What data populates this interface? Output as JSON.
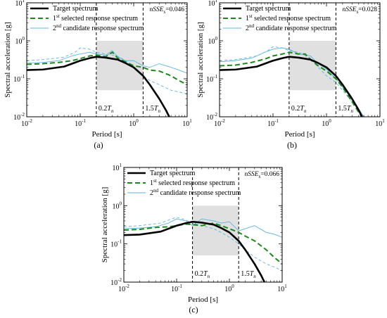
{
  "figure": {
    "panels": [
      {
        "label": "(a)",
        "metric_name": "nSSE",
        "metric_sub": "s",
        "metric_value": "=0.046"
      },
      {
        "label": "(b)",
        "metric_name": "nSSE",
        "metric_sub": "s",
        "metric_value": "=0.028"
      },
      {
        "label": "(c)",
        "metric_name": "nSSE",
        "metric_sub": "s",
        "metric_value": "=0.066"
      }
    ]
  },
  "chart_data": [
    {
      "type": "line",
      "xlabel": "Period [s]",
      "ylabel": "Spectral acceleration [g]",
      "x_scale": "log",
      "y_scale": "log",
      "xlim": [
        0.01,
        10
      ],
      "ylim": [
        0.01,
        10
      ],
      "x_ticks": [
        "10^-2",
        "10^-1",
        "10^0",
        "10^1"
      ],
      "y_ticks": [
        "10^-2",
        "10^-1",
        "10^0",
        "10^1"
      ],
      "legend_position": "top-left",
      "shaded_region": {
        "x": [
          0.2,
          1.5
        ],
        "y": [
          0.05,
          1.0
        ],
        "color": "#e0e0e0"
      },
      "vlines": [
        {
          "x": 0.2,
          "label": "0.2T",
          "subscript": "n"
        },
        {
          "x": 1.5,
          "label": "1.5T",
          "subscript": "n"
        }
      ],
      "series": [
        {
          "name": "Target spectrum",
          "style": "solid-thick",
          "color": "#000000",
          "x": [
            0.01,
            0.02,
            0.05,
            0.1,
            0.15,
            0.2,
            0.3,
            0.5,
            0.7,
            1,
            1.5,
            2,
            3,
            4,
            5
          ],
          "y": [
            0.17,
            0.175,
            0.21,
            0.3,
            0.35,
            0.38,
            0.36,
            0.32,
            0.26,
            0.2,
            0.12,
            0.07,
            0.03,
            0.015,
            0.008
          ]
        },
        {
          "name": "1st selected response spectrum",
          "name_parts": [
            "1",
            "st",
            " selected response spectrum"
          ],
          "style": "dashed-thick",
          "color": "#1a8a1a",
          "x": [
            0.01,
            0.02,
            0.04,
            0.07,
            0.1,
            0.15,
            0.2,
            0.3,
            0.4,
            0.5,
            0.7,
            1,
            1.5,
            2,
            3,
            5,
            7,
            10
          ],
          "y": [
            0.24,
            0.25,
            0.27,
            0.3,
            0.34,
            0.4,
            0.42,
            0.38,
            0.5,
            0.35,
            0.28,
            0.22,
            0.2,
            0.17,
            0.16,
            0.12,
            0.09,
            0.07
          ]
        },
        {
          "name": "2nd candidate response spectrum",
          "name_parts": [
            "2",
            "nd",
            " candidate response spectrum"
          ],
          "style": "thin",
          "color": "#5ab4e0",
          "x": [
            0.01,
            0.02,
            0.04,
            0.07,
            0.1,
            0.15,
            0.2,
            0.3,
            0.4,
            0.5,
            0.7,
            1,
            1.5,
            2,
            3,
            5,
            7,
            10
          ],
          "y": [
            0.26,
            0.27,
            0.3,
            0.4,
            0.45,
            0.5,
            0.45,
            0.42,
            0.55,
            0.38,
            0.3,
            0.3,
            0.22,
            0.2,
            0.25,
            0.2,
            0.17,
            0.14
          ]
        },
        {
          "name": "",
          "style": "dashed-thin",
          "color": "#5ab4e0",
          "x": [
            0.01,
            0.02,
            0.05,
            0.08,
            0.1,
            0.15,
            0.2,
            0.3,
            0.5,
            0.7,
            1,
            1.5,
            2,
            3,
            5,
            7,
            10
          ],
          "y": [
            0.3,
            0.32,
            0.37,
            0.5,
            0.65,
            0.6,
            0.5,
            0.45,
            0.4,
            0.3,
            0.2,
            0.12,
            0.09,
            0.07,
            0.05,
            0.045,
            0.04
          ]
        }
      ]
    },
    {
      "type": "line",
      "xlabel": "Period [s]",
      "ylabel": "Spectral acceleration [g]",
      "x_scale": "log",
      "y_scale": "log",
      "xlim": [
        0.01,
        10
      ],
      "ylim": [
        0.01,
        10
      ],
      "x_ticks": [
        "10^-2",
        "10^-1",
        "10^0",
        "10^1"
      ],
      "y_ticks": [
        "10^-2",
        "10^-1",
        "10^0",
        "10^1"
      ],
      "legend_position": "top-left",
      "shaded_region": {
        "x": [
          0.2,
          1.5
        ],
        "y": [
          0.05,
          1.0
        ],
        "color": "#e0e0e0"
      },
      "vlines": [
        {
          "x": 0.2,
          "label": "0.2T",
          "subscript": "n"
        },
        {
          "x": 1.5,
          "label": "1.5T",
          "subscript": "n"
        }
      ],
      "series": [
        {
          "name": "Target spectrum",
          "style": "solid-thick",
          "color": "#000000",
          "x": [
            0.01,
            0.02,
            0.05,
            0.1,
            0.15,
            0.2,
            0.3,
            0.5,
            0.7,
            1,
            1.5,
            2,
            3,
            4,
            5
          ],
          "y": [
            0.17,
            0.175,
            0.21,
            0.3,
            0.35,
            0.38,
            0.36,
            0.32,
            0.26,
            0.2,
            0.12,
            0.07,
            0.03,
            0.015,
            0.008
          ]
        },
        {
          "name": "1st selected response spectrum",
          "name_parts": [
            "1",
            "st",
            " selected response spectrum"
          ],
          "style": "dashed-thick",
          "color": "#1a8a1a",
          "x": [
            0.01,
            0.02,
            0.04,
            0.07,
            0.1,
            0.15,
            0.2,
            0.3,
            0.4,
            0.5,
            0.7,
            1,
            1.5,
            2,
            3,
            5
          ],
          "y": [
            0.22,
            0.23,
            0.27,
            0.33,
            0.4,
            0.45,
            0.5,
            0.45,
            0.45,
            0.32,
            0.22,
            0.16,
            0.1,
            0.06,
            0.025,
            0.008
          ]
        },
        {
          "name": "2nd candidate response spectrum",
          "name_parts": [
            "2",
            "nd",
            " candidate response spectrum"
          ],
          "style": "thin",
          "color": "#5ab4e0",
          "x": [
            0.01,
            0.02,
            0.04,
            0.07,
            0.1,
            0.15,
            0.2,
            0.3,
            0.5,
            0.7,
            1,
            1.5,
            2,
            3,
            5
          ],
          "y": [
            0.28,
            0.3,
            0.35,
            0.5,
            0.6,
            0.65,
            0.6,
            0.45,
            0.4,
            0.25,
            0.18,
            0.1,
            0.06,
            0.03,
            0.01
          ]
        },
        {
          "name": "",
          "style": "dashed-thin",
          "color": "#5ab4e0",
          "x": [
            0.01,
            0.02,
            0.05,
            0.08,
            0.1,
            0.15,
            0.2,
            0.3,
            0.5,
            0.7,
            1,
            1.5,
            2,
            3,
            5
          ],
          "y": [
            0.3,
            0.32,
            0.4,
            0.55,
            0.7,
            0.65,
            0.55,
            0.5,
            0.35,
            0.2,
            0.12,
            0.08,
            0.05,
            0.025,
            0.01
          ]
        }
      ]
    },
    {
      "type": "line",
      "xlabel": "Period [s]",
      "ylabel": "Spectral acceleration [g]",
      "x_scale": "log",
      "y_scale": "log",
      "xlim": [
        0.01,
        10
      ],
      "ylim": [
        0.01,
        10
      ],
      "x_ticks": [
        "10^-2",
        "10^-1",
        "10^0",
        "10^1"
      ],
      "y_ticks": [
        "10^-2",
        "10^-1",
        "10^0",
        "10^1"
      ],
      "legend_position": "top-left",
      "shaded_region": {
        "x": [
          0.2,
          1.5
        ],
        "y": [
          0.05,
          1.0
        ],
        "color": "#e0e0e0"
      },
      "vlines": [
        {
          "x": 0.2,
          "label": "0.2T",
          "subscript": "n"
        },
        {
          "x": 1.5,
          "label": "1.5T",
          "subscript": "n"
        }
      ],
      "series": [
        {
          "name": "Target spectrum",
          "style": "solid-thick",
          "color": "#000000",
          "x": [
            0.01,
            0.02,
            0.05,
            0.1,
            0.15,
            0.2,
            0.3,
            0.5,
            0.7,
            1,
            1.5,
            2,
            3,
            4,
            5
          ],
          "y": [
            0.17,
            0.175,
            0.21,
            0.3,
            0.35,
            0.38,
            0.36,
            0.32,
            0.26,
            0.2,
            0.12,
            0.07,
            0.03,
            0.015,
            0.008
          ]
        },
        {
          "name": "1st selected response spectrum",
          "name_parts": [
            "1",
            "st",
            " selected response spectrum"
          ],
          "style": "dashed-thick",
          "color": "#1a8a1a",
          "x": [
            0.01,
            0.02,
            0.04,
            0.07,
            0.1,
            0.15,
            0.2,
            0.3,
            0.5,
            0.7,
            1,
            1.5,
            2,
            3,
            5,
            7,
            10
          ],
          "y": [
            0.23,
            0.24,
            0.27,
            0.28,
            0.3,
            0.33,
            0.32,
            0.3,
            0.35,
            0.3,
            0.25,
            0.2,
            0.16,
            0.12,
            0.07,
            0.045,
            0.03
          ]
        },
        {
          "name": "2nd candidate response spectrum",
          "name_parts": [
            "2",
            "nd",
            " candidate response spectrum"
          ],
          "style": "thin",
          "color": "#5ab4e0",
          "x": [
            0.01,
            0.02,
            0.04,
            0.07,
            0.1,
            0.15,
            0.2,
            0.3,
            0.5,
            0.7,
            1,
            1.5,
            2,
            3,
            5,
            7,
            10
          ],
          "y": [
            0.25,
            0.26,
            0.28,
            0.35,
            0.45,
            0.4,
            0.3,
            0.45,
            0.4,
            0.35,
            0.38,
            0.22,
            0.25,
            0.3,
            0.2,
            0.18,
            0.15
          ]
        },
        {
          "name": "",
          "style": "dashed-thin",
          "color": "#5ab4e0",
          "x": [
            0.01,
            0.02,
            0.05,
            0.08,
            0.1,
            0.15,
            0.2,
            0.3,
            0.5,
            0.7,
            1,
            1.5,
            2,
            3,
            5,
            7,
            10
          ],
          "y": [
            0.28,
            0.3,
            0.35,
            0.45,
            0.5,
            0.42,
            0.35,
            0.3,
            0.25,
            0.2,
            0.15,
            0.1,
            0.07,
            0.045,
            0.03,
            0.025,
            0.02
          ]
        }
      ]
    }
  ]
}
